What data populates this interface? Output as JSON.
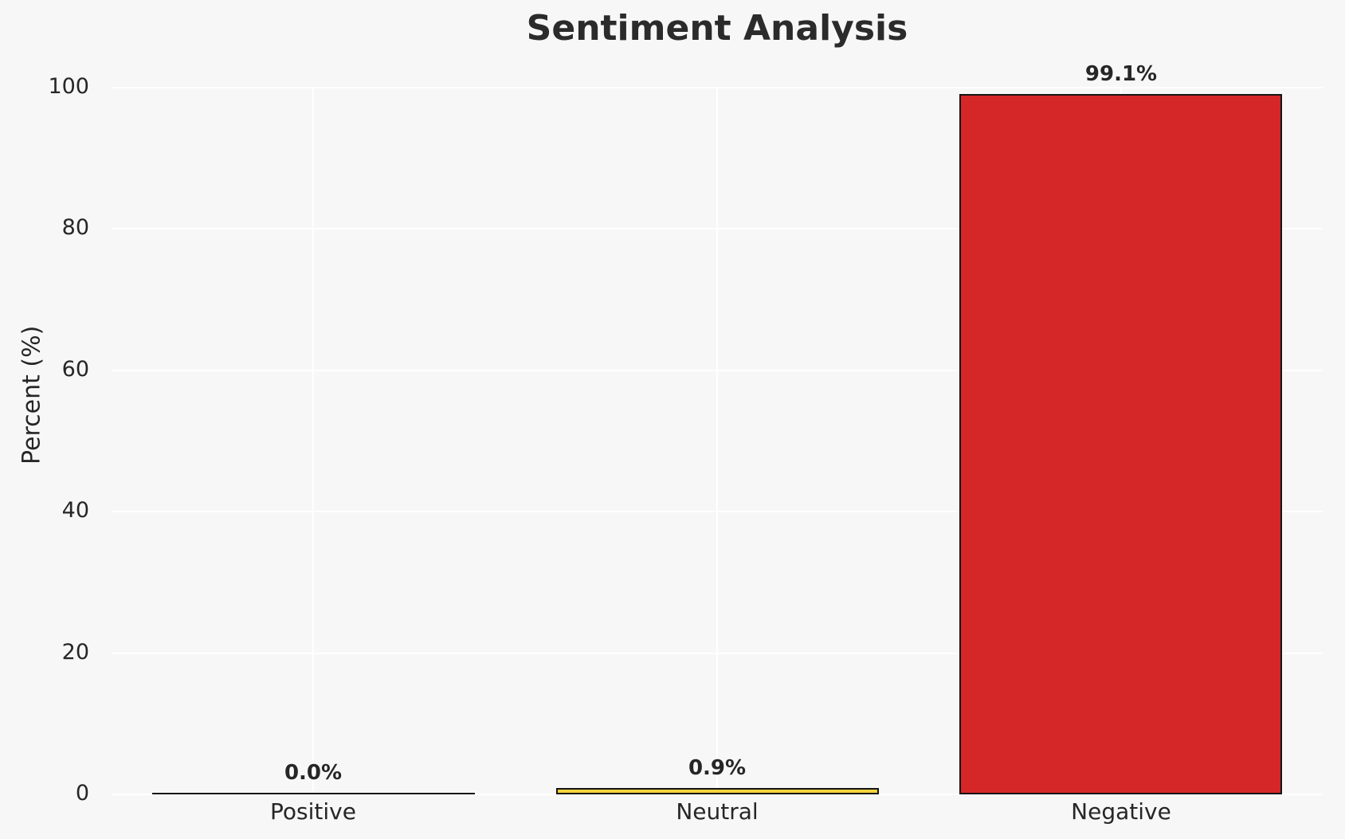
{
  "chart_data": {
    "type": "bar",
    "title": "Sentiment Analysis",
    "xlabel": "",
    "ylabel": "Percent (%)",
    "categories": [
      "Positive",
      "Neutral",
      "Negative"
    ],
    "values": [
      0.0,
      0.9,
      99.1
    ],
    "value_labels": [
      "0.0%",
      "0.9%",
      "99.1%"
    ],
    "bar_colors": [
      "#f7f7f7",
      "#f5d33c",
      "#d62728"
    ],
    "bar_edge_color": "#141414",
    "ylim": [
      0,
      100
    ],
    "yticks": [
      0,
      20,
      40,
      60,
      80,
      100
    ],
    "grid": true,
    "gridline_color": "#ffffff",
    "background_color": "#f7f7f7",
    "legend": "none"
  }
}
